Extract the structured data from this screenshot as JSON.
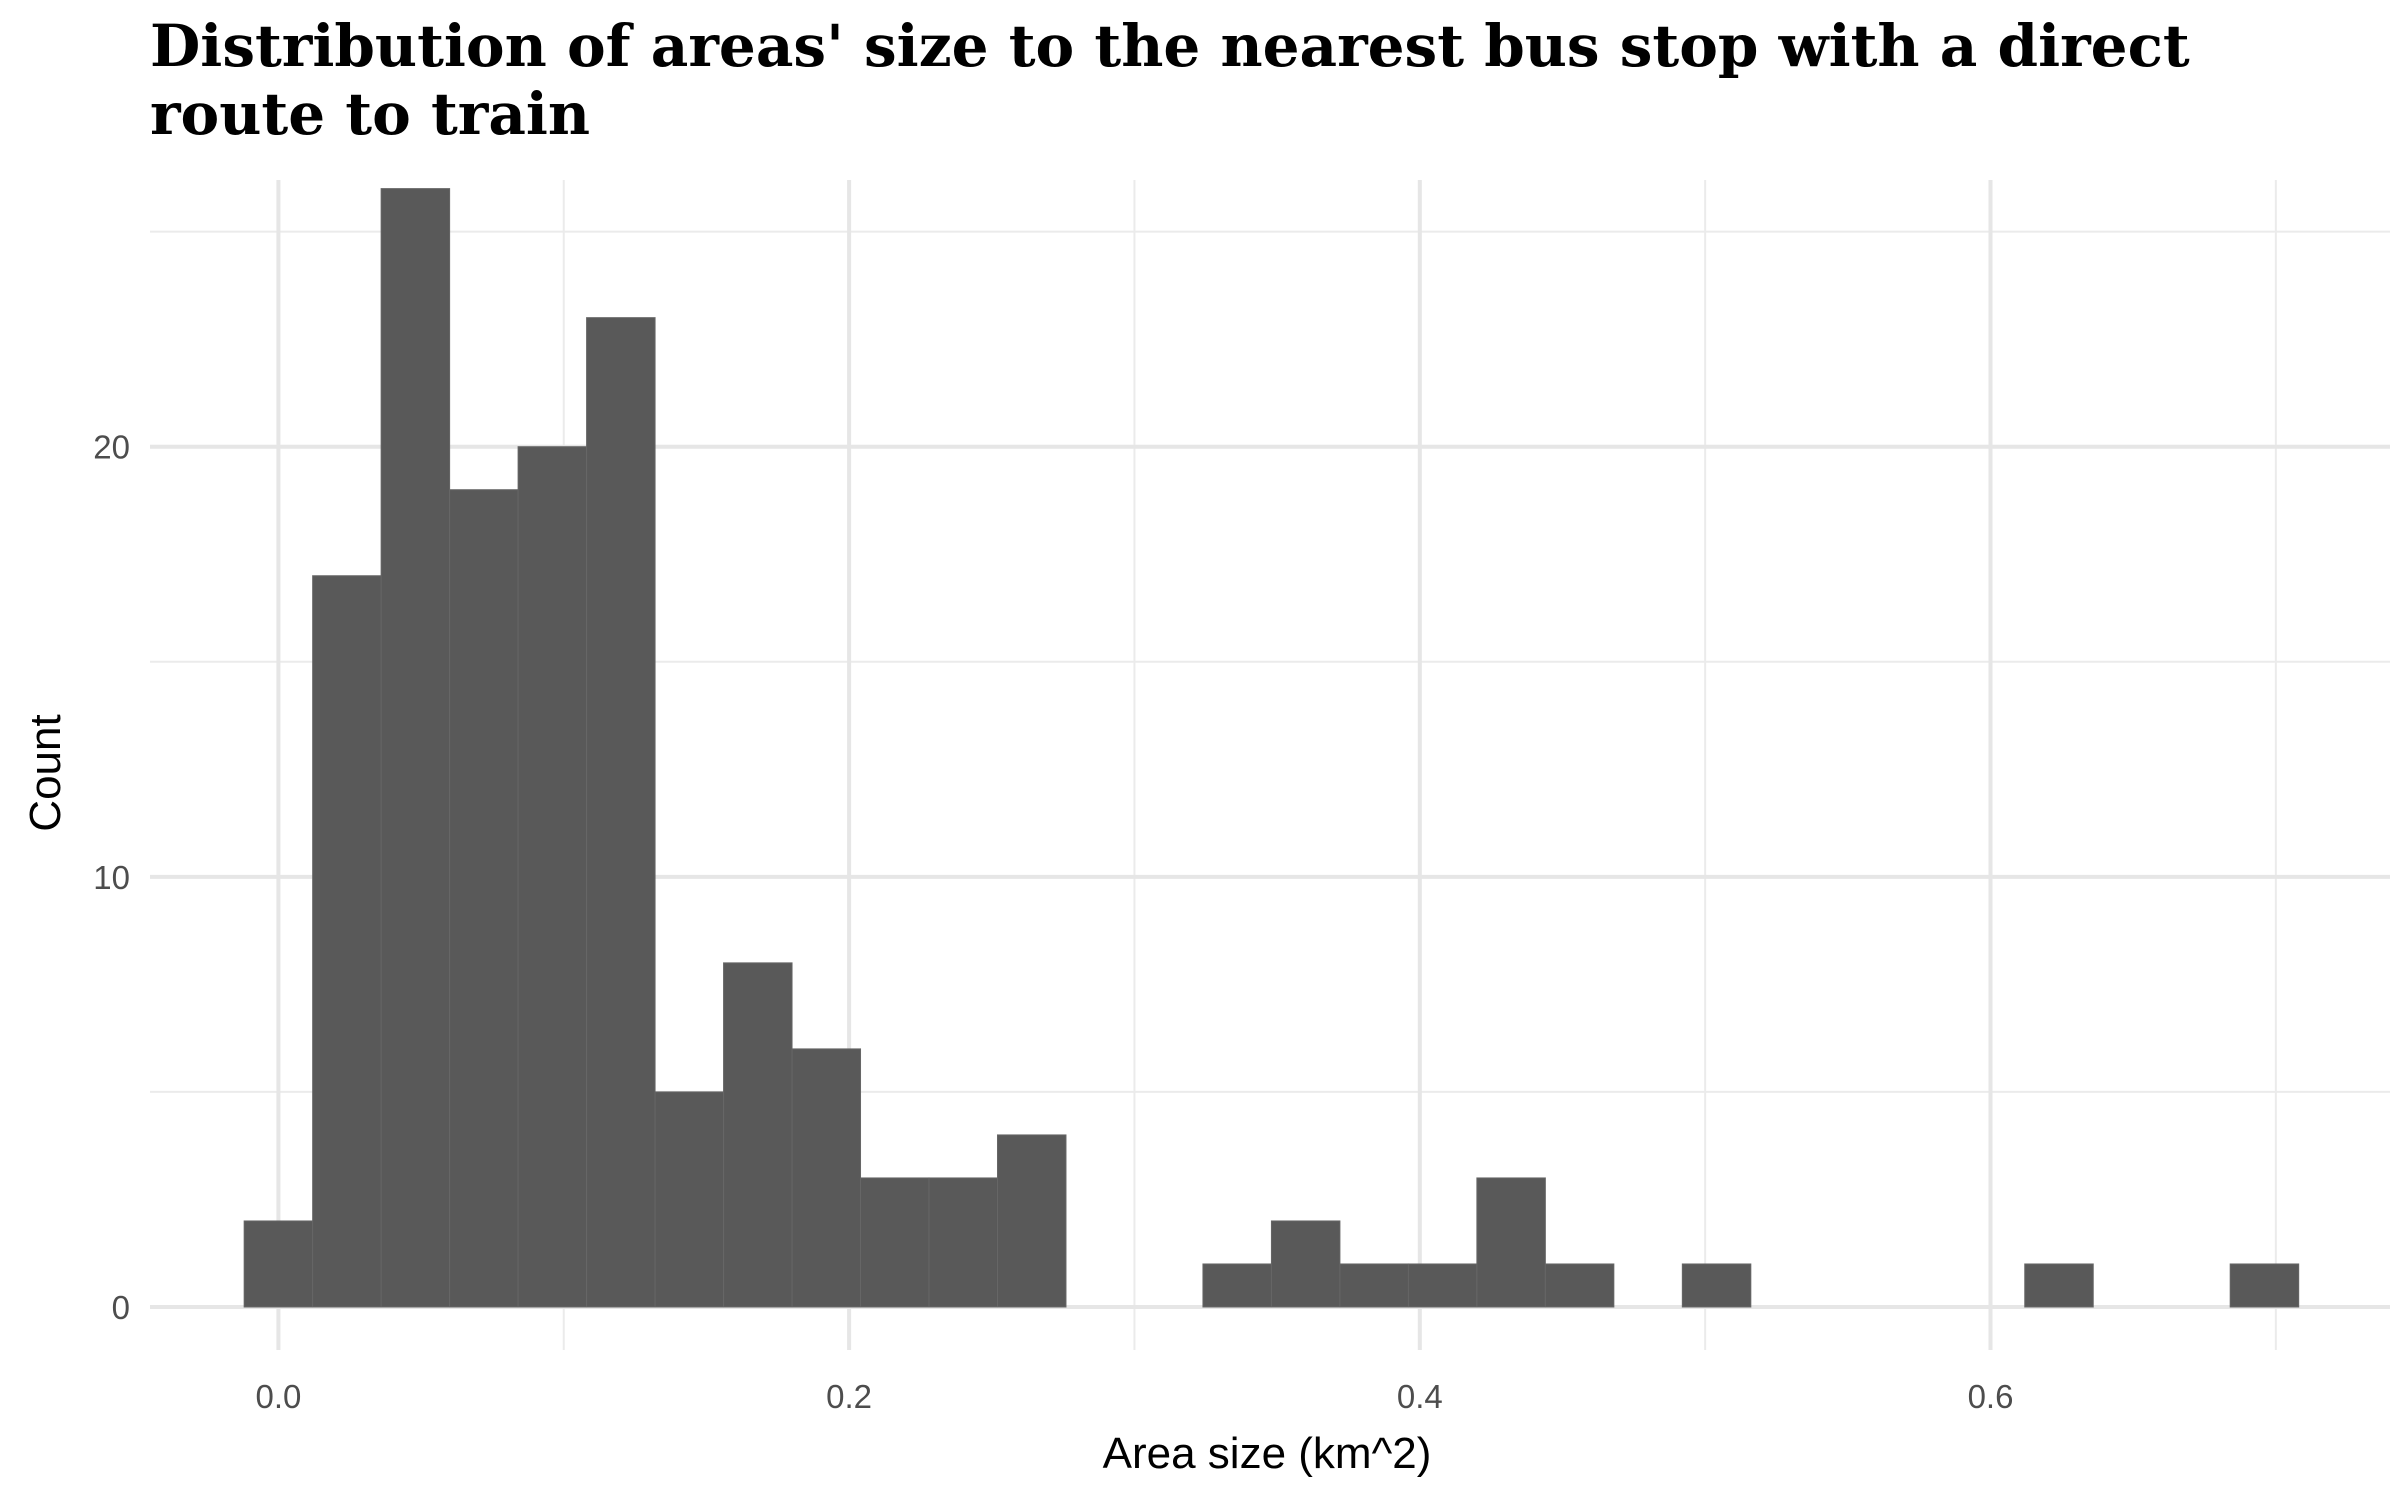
{
  "chart_data": {
    "type": "bar",
    "title": "Distribution of areas' size to the nearest bus stop with a direct route to train",
    "xlabel": "Area size (km^2)",
    "ylabel": "Count",
    "xlim": [
      -0.045,
      0.74
    ],
    "ylim": [
      -1.0,
      26.2
    ],
    "x_ticks": [
      0.0,
      0.2,
      0.4,
      0.6
    ],
    "x_tick_labels": [
      "0.0",
      "0.2",
      "0.4",
      "0.6"
    ],
    "y_ticks": [
      0,
      10,
      20
    ],
    "y_tick_labels": [
      "0",
      "10",
      "20"
    ],
    "bin_width": 0.024,
    "bin_starts": [
      -0.012,
      0.012,
      0.036,
      0.06,
      0.084,
      0.108,
      0.132,
      0.156,
      0.18,
      0.204,
      0.228,
      0.252,
      0.276,
      0.3,
      0.324,
      0.348,
      0.372,
      0.396,
      0.42,
      0.444,
      0.468,
      0.492,
      0.516,
      0.54,
      0.564,
      0.588,
      0.612,
      0.636,
      0.66,
      0.684
    ],
    "values": [
      2,
      17,
      26,
      19,
      20,
      23,
      5,
      8,
      6,
      3,
      3,
      4,
      0,
      0,
      1,
      2,
      1,
      1,
      3,
      1,
      0,
      1,
      0,
      0,
      0,
      0,
      1,
      0,
      0,
      1
    ],
    "bar_color": "#595959",
    "grid": true,
    "legend": "none"
  }
}
